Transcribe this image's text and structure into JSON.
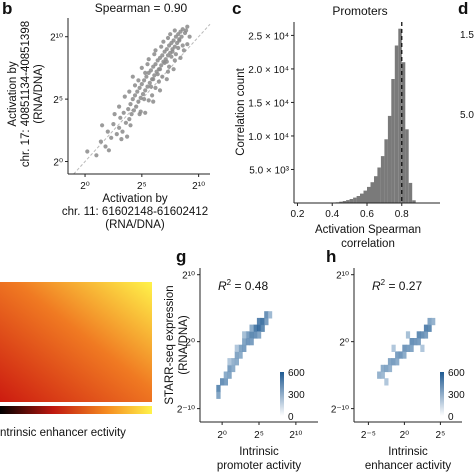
{
  "panel_letters": [
    "b",
    "c",
    "d",
    "g",
    "h"
  ],
  "colors": {
    "scatter_points": "#8a8a8a",
    "histogram_bars": "#7a7a7a",
    "density_low": "#e3edf6",
    "density_high": "#1f5a92",
    "heatmap_low": "#cc1b10",
    "heatmap_high": "#fff34a"
  },
  "chart_data": [
    {
      "panel": "b",
      "type": "scatter",
      "title": "Spearman = 0.90",
      "xlabel": "Activation by chr. 11: 61602148-61602412 (RNA/DNA)",
      "xlabel_lines": [
        "Activation by",
        "chr. 11: 61602148-61602412",
        "(RNA/DNA)"
      ],
      "ylabel_lines": [
        "Activation by",
        "chr. 17: 40851134-40851398",
        "(RNA/DNA)"
      ],
      "x_scale": "log2",
      "y_scale": "log2",
      "xlim_exp": [
        -1.5,
        11
      ],
      "ylim_exp": [
        -1,
        11.5
      ],
      "x_ticks": [
        "2⁰",
        "2⁵",
        "2¹⁰"
      ],
      "x_tick_exps": [
        0,
        5,
        10
      ],
      "y_ticks": [
        "2⁰",
        "2⁵",
        "2¹⁰"
      ],
      "y_tick_exps": [
        0,
        5,
        10
      ],
      "diagonal": true,
      "points_log2": [
        [
          0.2,
          0.8
        ],
        [
          1.0,
          0.5
        ],
        [
          1.4,
          1.6
        ],
        [
          1.8,
          1.2
        ],
        [
          2.0,
          2.4
        ],
        [
          2.3,
          1.9
        ],
        [
          2.5,
          3.0
        ],
        [
          2.8,
          2.2
        ],
        [
          3.0,
          2.7
        ],
        [
          3.1,
          3.5
        ],
        [
          3.3,
          2.4
        ],
        [
          3.4,
          3.9
        ],
        [
          3.6,
          3.1
        ],
        [
          3.8,
          4.2
        ],
        [
          3.9,
          3.4
        ],
        [
          4.0,
          4.6
        ],
        [
          4.1,
          3.8
        ],
        [
          4.2,
          5.0
        ],
        [
          4.3,
          4.1
        ],
        [
          4.4,
          5.3
        ],
        [
          4.5,
          4.4
        ],
        [
          4.6,
          5.6
        ],
        [
          4.7,
          4.8
        ],
        [
          4.8,
          5.9
        ],
        [
          4.9,
          5.1
        ],
        [
          5.0,
          6.2
        ],
        [
          5.1,
          5.4
        ],
        [
          5.2,
          6.5
        ],
        [
          5.3,
          5.7
        ],
        [
          5.4,
          6.8
        ],
        [
          5.5,
          6.0
        ],
        [
          5.6,
          7.1
        ],
        [
          5.7,
          6.3
        ],
        [
          5.8,
          7.3
        ],
        [
          5.9,
          6.6
        ],
        [
          6.0,
          7.6
        ],
        [
          6.1,
          6.9
        ],
        [
          6.2,
          7.8
        ],
        [
          6.3,
          7.2
        ],
        [
          6.4,
          8.1
        ],
        [
          6.5,
          7.4
        ],
        [
          6.6,
          8.3
        ],
        [
          6.7,
          7.7
        ],
        [
          6.8,
          8.5
        ],
        [
          6.9,
          8.0
        ],
        [
          7.0,
          8.8
        ],
        [
          7.1,
          8.2
        ],
        [
          7.2,
          9.0
        ],
        [
          7.3,
          8.5
        ],
        [
          7.4,
          9.3
        ],
        [
          7.5,
          8.7
        ],
        [
          7.6,
          9.5
        ],
        [
          7.7,
          9.0
        ],
        [
          7.8,
          9.7
        ],
        [
          7.9,
          9.2
        ],
        [
          8.0,
          10.0
        ],
        [
          8.1,
          9.5
        ],
        [
          8.2,
          10.2
        ],
        [
          8.3,
          9.8
        ],
        [
          8.4,
          10.4
        ],
        [
          8.5,
          10.0
        ],
        [
          8.6,
          10.6
        ],
        [
          8.8,
          10.3
        ],
        [
          9.0,
          10.8
        ],
        [
          2.6,
          3.8
        ],
        [
          3.5,
          5.2
        ],
        [
          4.4,
          6.1
        ],
        [
          5.2,
          5.0
        ],
        [
          5.8,
          6.0
        ],
        [
          6.4,
          7.0
        ],
        [
          7.0,
          7.9
        ],
        [
          7.6,
          8.4
        ],
        [
          8.2,
          9.1
        ],
        [
          3.2,
          1.8
        ],
        [
          4.0,
          2.9
        ],
        [
          4.8,
          3.8
        ],
        [
          5.6,
          4.9
        ],
        [
          6.2,
          5.9
        ],
        [
          6.8,
          6.8
        ],
        [
          7.4,
          7.6
        ],
        [
          8.0,
          8.6
        ],
        [
          8.6,
          9.3
        ],
        [
          4.2,
          6.8
        ],
        [
          5.0,
          7.5
        ],
        [
          5.6,
          8.2
        ],
        [
          6.2,
          8.9
        ],
        [
          6.9,
          9.6
        ],
        [
          7.5,
          10.2
        ],
        [
          5.3,
          3.9
        ],
        [
          6.0,
          4.8
        ],
        [
          6.6,
          5.7
        ],
        [
          7.2,
          6.6
        ],
        [
          7.8,
          7.4
        ],
        [
          8.4,
          8.3
        ],
        [
          9.0,
          9.4
        ],
        [
          1.5,
          2.9
        ],
        [
          2.1,
          0.9
        ],
        [
          3.7,
          2.0
        ],
        [
          4.9,
          4.0
        ],
        [
          5.9,
          5.3
        ],
        [
          6.5,
          6.4
        ],
        [
          7.3,
          7.2
        ],
        [
          7.9,
          8.1
        ],
        [
          8.7,
          8.9
        ],
        [
          9.2,
          10.0
        ],
        [
          5.5,
          7.8
        ],
        [
          6.1,
          8.6
        ],
        [
          6.7,
          9.2
        ],
        [
          7.3,
          9.9
        ],
        [
          7.9,
          10.5
        ],
        [
          3.0,
          4.4
        ],
        [
          3.9,
          5.6
        ],
        [
          4.7,
          6.5
        ],
        [
          5.3,
          7.1
        ],
        [
          6.0,
          6.6
        ],
        [
          6.6,
          7.4
        ],
        [
          7.2,
          8.0
        ],
        [
          7.7,
          8.8
        ],
        [
          8.3,
          9.7
        ],
        [
          8.9,
          10.5
        ]
      ]
    },
    {
      "panel": "c",
      "type": "bar",
      "title": "Promoters",
      "xlabel": "Activation Spearman correlation",
      "xlabel_lines": [
        "Activation Spearman",
        "correlation"
      ],
      "ylabel": "Correlation count",
      "xlim": [
        0.18,
        1.02
      ],
      "ylim": [
        0,
        27000
      ],
      "x_ticks": [
        "0.2",
        "0.4",
        "0.6",
        "0.8"
      ],
      "x_tick_values": [
        0.2,
        0.4,
        0.6,
        0.8
      ],
      "y_ticks": [
        "5.0 × 10³",
        "1.0 × 10⁴",
        "1.5 × 10⁴",
        "2.0 × 10⁴",
        "2.5 × 10⁴"
      ],
      "y_tick_values": [
        5000,
        10000,
        15000,
        20000,
        25000
      ],
      "vline": 0.8,
      "bins_start": [
        0.4,
        0.42,
        0.44,
        0.46,
        0.48,
        0.5,
        0.52,
        0.54,
        0.56,
        0.58,
        0.6,
        0.62,
        0.64,
        0.66,
        0.68,
        0.7,
        0.72,
        0.74,
        0.76,
        0.78,
        0.8,
        0.82,
        0.84,
        0.86
      ],
      "bin_width": 0.02,
      "values": [
        60,
        110,
        200,
        300,
        430,
        600,
        800,
        1050,
        1400,
        1850,
        2400,
        3100,
        4000,
        5300,
        7000,
        9500,
        13000,
        18500,
        23500,
        26000,
        21000,
        11000,
        3000,
        400
      ]
    },
    {
      "panel": "d",
      "type": "heatmap",
      "y_ticks": [
        "1.5",
        "5.0"
      ]
    },
    {
      "panel": "heatmap-left",
      "type": "heatmap",
      "xlabel": "ntrinsic enhancer ectivity",
      "colormap": "red-to-yellow"
    },
    {
      "panel": "g",
      "type": "heatmap",
      "annotation_prefix": "R",
      "annotation_exp": "2",
      "annotation_value": " = 0.48",
      "xlabel_lines": [
        "Intrinsic",
        "promoter activity"
      ],
      "ylabel_lines": [
        "STARR-seq expression",
        "(RNA/DNA)"
      ],
      "x_scale": "log2",
      "y_scale": "log2",
      "xlim_exp": [
        -3,
        13
      ],
      "ylim_exp": [
        -12,
        11
      ],
      "x_ticks": [
        "2⁰",
        "2⁵",
        "2¹⁰"
      ],
      "x_tick_exps": [
        0,
        5,
        10
      ],
      "y_ticks": [
        "2¹⁰",
        "2⁰",
        "2⁻¹⁰"
      ],
      "y_tick_exps": [
        10,
        0,
        -10
      ],
      "colorbar_ticks": [
        "600",
        "300",
        "0"
      ],
      "colorbar_values": [
        600,
        300,
        0
      ],
      "density_cells": [
        [
          -0.5,
          -7,
          0.75
        ],
        [
          -0.5,
          -8,
          0.55
        ],
        [
          0,
          -6,
          0.7
        ],
        [
          0.5,
          -6,
          0.6
        ],
        [
          0.5,
          -5,
          0.5
        ],
        [
          1,
          -5,
          0.55
        ],
        [
          1,
          -4,
          0.6
        ],
        [
          1.5,
          -4,
          0.5
        ],
        [
          1.5,
          -3,
          0.45
        ],
        [
          2,
          -3,
          0.5
        ],
        [
          2,
          -2,
          0.55
        ],
        [
          2.5,
          -2,
          0.5
        ],
        [
          2.5,
          -1,
          0.55
        ],
        [
          3,
          -1,
          0.6
        ],
        [
          3,
          0,
          0.55
        ],
        [
          3.5,
          0,
          0.65
        ],
        [
          3.5,
          1,
          0.6
        ],
        [
          4,
          1,
          0.75
        ],
        [
          4,
          0,
          0.6
        ],
        [
          4.5,
          2,
          0.85
        ],
        [
          4.5,
          1,
          0.7
        ],
        [
          5,
          2,
          0.95
        ],
        [
          5,
          3,
          0.8
        ],
        [
          5.5,
          3,
          0.9
        ],
        [
          5.5,
          2,
          0.75
        ],
        [
          6,
          4,
          0.7
        ],
        [
          6,
          3,
          0.6
        ],
        [
          6.5,
          4,
          0.4
        ],
        [
          4,
          2,
          0.5
        ],
        [
          5,
          1,
          0.55
        ],
        [
          3,
          1,
          0.35
        ],
        [
          2,
          -1,
          0.3
        ],
        [
          1,
          -3,
          0.3
        ]
      ]
    },
    {
      "panel": "h",
      "type": "heatmap",
      "annotation_prefix": "R",
      "annotation_exp": "2",
      "annotation_value": " = 0.27",
      "xlabel_lines": [
        "Intrinsic",
        "enhancer activity"
      ],
      "x_scale": "log2",
      "y_scale": "log2",
      "xlim_exp": [
        -7,
        8
      ],
      "ylim_exp": [
        -12,
        11
      ],
      "x_ticks": [
        "2⁻⁵",
        "2⁰",
        "2⁵"
      ],
      "x_tick_exps": [
        -5,
        0,
        5
      ],
      "y_ticks": [
        "2¹⁰",
        "2⁰",
        "2⁻¹⁰"
      ],
      "y_tick_exps": [
        10,
        0,
        -10
      ],
      "colorbar_ticks": [
        "600",
        "300",
        "0"
      ],
      "colorbar_values": [
        600,
        300,
        0
      ],
      "density_cells": [
        [
          -3.5,
          -5,
          0.45
        ],
        [
          -3,
          -4,
          0.5
        ],
        [
          -3,
          -5,
          0.4
        ],
        [
          -2.5,
          -4,
          0.55
        ],
        [
          -2,
          -3,
          0.55
        ],
        [
          -2,
          -4,
          0.45
        ],
        [
          -1.5,
          -3,
          0.6
        ],
        [
          -1,
          -2,
          0.6
        ],
        [
          -1,
          -3,
          0.5
        ],
        [
          -0.5,
          -2,
          0.65
        ],
        [
          0,
          -1,
          0.65
        ],
        [
          0,
          -2,
          0.5
        ],
        [
          0.5,
          -1,
          0.6
        ],
        [
          1,
          0,
          0.7
        ],
        [
          1,
          -1,
          0.55
        ],
        [
          1.5,
          0,
          0.65
        ],
        [
          2,
          1,
          0.75
        ],
        [
          2,
          0,
          0.6
        ],
        [
          2.5,
          1,
          0.7
        ],
        [
          3,
          2,
          0.8
        ],
        [
          3,
          1,
          0.6
        ],
        [
          3.5,
          2,
          0.75
        ],
        [
          3.5,
          3,
          0.55
        ],
        [
          4,
          3,
          0.45
        ],
        [
          -2.5,
          -6,
          0.3
        ],
        [
          -1.5,
          -1,
          0.3
        ],
        [
          0.5,
          1,
          0.35
        ],
        [
          2.5,
          -1,
          0.3
        ]
      ]
    }
  ]
}
